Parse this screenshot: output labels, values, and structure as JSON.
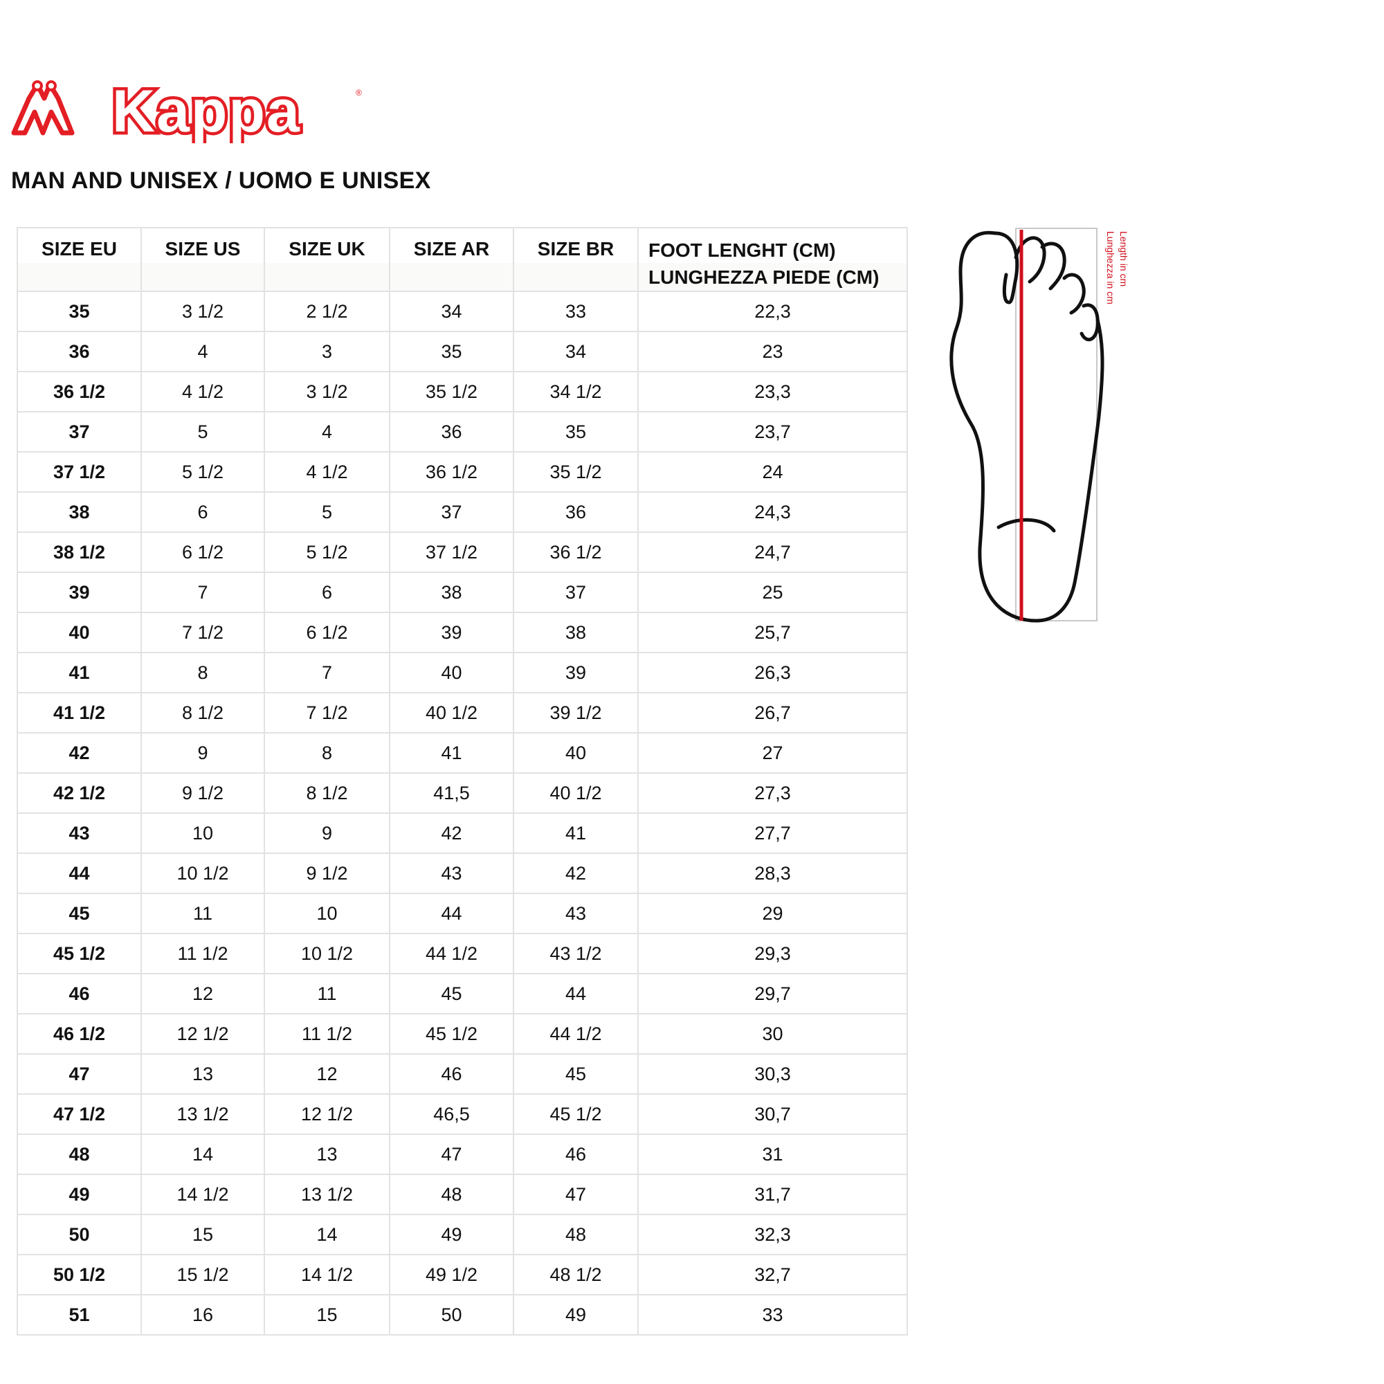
{
  "brand": {
    "logo_text": "Kappa",
    "color": "#e31e24"
  },
  "title": "MAN AND UNISEX / UOMO E UNISEX",
  "table": {
    "headers": [
      "SIZE EU",
      "SIZE US",
      "SIZE UK",
      "SIZE AR",
      "SIZE BR"
    ],
    "foot_header_line1": "FOOT LENGHT (CM)",
    "foot_header_line2": "LUNGHEZZA PIEDE (CM)",
    "rows": [
      [
        "35",
        "3 1/2",
        "2 1/2",
        "34",
        "33",
        "22,3"
      ],
      [
        "36",
        "4",
        "3",
        "35",
        "34",
        "23"
      ],
      [
        "36 1/2",
        "4 1/2",
        "3 1/2",
        "35 1/2",
        "34 1/2",
        "23,3"
      ],
      [
        "37",
        "5",
        "4",
        "36",
        "35",
        "23,7"
      ],
      [
        "37 1/2",
        "5 1/2",
        "4 1/2",
        "36 1/2",
        "35 1/2",
        "24"
      ],
      [
        "38",
        "6",
        "5",
        "37",
        "36",
        "24,3"
      ],
      [
        "38 1/2",
        "6 1/2",
        "5 1/2",
        "37 1/2",
        "36 1/2",
        "24,7"
      ],
      [
        "39",
        "7",
        "6",
        "38",
        "37",
        "25"
      ],
      [
        "40",
        "7 1/2",
        "6 1/2",
        "39",
        "38",
        "25,7"
      ],
      [
        "41",
        "8",
        "7",
        "40",
        "39",
        "26,3"
      ],
      [
        "41 1/2",
        "8 1/2",
        "7 1/2",
        "40 1/2",
        "39 1/2",
        "26,7"
      ],
      [
        "42",
        "9",
        "8",
        "41",
        "40",
        "27"
      ],
      [
        "42 1/2",
        "9 1/2",
        "8 1/2",
        "41,5",
        "40 1/2",
        "27,3"
      ],
      [
        "43",
        "10",
        "9",
        "42",
        "41",
        "27,7"
      ],
      [
        "44",
        "10 1/2",
        "9 1/2",
        "43",
        "42",
        "28,3"
      ],
      [
        "45",
        "11",
        "10",
        "44",
        "43",
        "29"
      ],
      [
        "45 1/2",
        "11 1/2",
        "10 1/2",
        "44 1/2",
        "43 1/2",
        "29,3"
      ],
      [
        "46",
        "12",
        "11",
        "45",
        "44",
        "29,7"
      ],
      [
        "46 1/2",
        "12 1/2",
        "11 1/2",
        "45 1/2",
        "44 1/2",
        "30"
      ],
      [
        "47",
        "13",
        "12",
        "46",
        "45",
        "30,3"
      ],
      [
        "47 1/2",
        "13 1/2",
        "12 1/2",
        "46,5",
        "45 1/2",
        "30,7"
      ],
      [
        "48",
        "14",
        "13",
        "47",
        "46",
        "31"
      ],
      [
        "49",
        "14 1/2",
        "13 1/2",
        "48",
        "47",
        "31,7"
      ],
      [
        "50",
        "15",
        "14",
        "49",
        "48",
        "32,3"
      ],
      [
        "50 1/2",
        "15 1/2",
        "14 1/2",
        "49 1/2",
        "48 1/2",
        "32,7"
      ],
      [
        "51",
        "16",
        "15",
        "50",
        "49",
        "33"
      ]
    ]
  },
  "foot_diagram": {
    "label_en": "Length in cm",
    "label_it": "Lunghezza in cm",
    "line_color": "#d0101e"
  }
}
